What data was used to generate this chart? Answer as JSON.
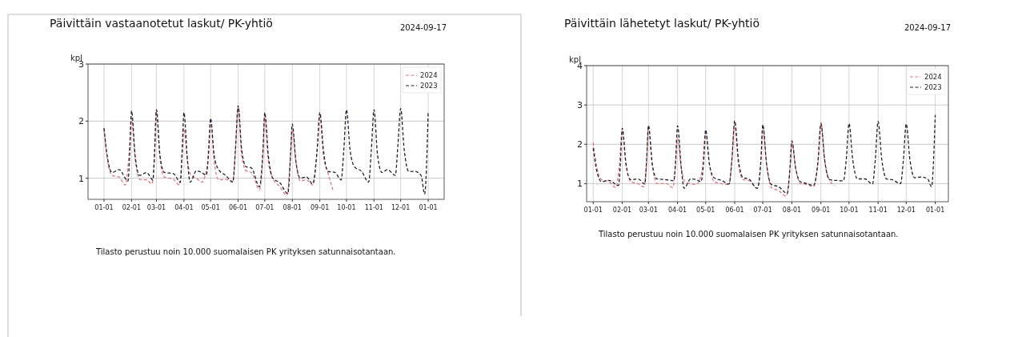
{
  "chart_data": [
    {
      "type": "line",
      "title": "Päivittäin vastaanotetut laskut/ PK-yhtiö",
      "ylabel": "kpl",
      "annotations": [
        "2024-09-17",
        "Tilasto perustuu noin 10.000 suomalaisen PK yrityksen satunnaisotantaan."
      ],
      "xlim": [
        "2022-12-14",
        "2024-01-19"
      ],
      "ylim": [
        0.63,
        3
      ],
      "yticks": [
        1,
        2,
        3
      ],
      "xticks": [
        {
          "value": "2023-01-01",
          "label": "01-01"
        },
        {
          "value": "2023-02-01",
          "label": "02-01"
        },
        {
          "value": "2023-03-01",
          "label": "03-01"
        },
        {
          "value": "2023-04-01",
          "label": "04-01"
        },
        {
          "value": "2023-05-01",
          "label": "05-01"
        },
        {
          "value": "2023-06-01",
          "label": "06-01"
        },
        {
          "value": "2023-07-01",
          "label": "07-01"
        },
        {
          "value": "2023-08-01",
          "label": "08-01"
        },
        {
          "value": "2023-09-01",
          "label": "09-01"
        },
        {
          "value": "2023-10-01",
          "label": "10-01"
        },
        {
          "value": "2023-11-01",
          "label": "11-01"
        },
        {
          "value": "2023-12-01",
          "label": "12-01"
        },
        {
          "value": "2024-01-01",
          "label": "01-01"
        }
      ],
      "grid": true,
      "legend": "top right",
      "marker": "none",
      "line_style": "dashed",
      "series": [
        {
          "name": "2024",
          "color": "#e07a80",
          "x": [
            "2023-01-01",
            "2023-01-05",
            "2023-01-10",
            "2023-01-18",
            "2023-01-25",
            "2023-01-29",
            "2023-02-01",
            "2023-02-05",
            "2023-02-10",
            "2023-02-18",
            "2023-02-24",
            "2023-02-27",
            "2023-03-01",
            "2023-03-05",
            "2023-03-10",
            "2023-03-20",
            "2023-03-27",
            "2023-03-30",
            "2023-04-01",
            "2023-04-05",
            "2023-04-09",
            "2023-04-15",
            "2023-04-21",
            "2023-04-27",
            "2023-05-01",
            "2023-05-05",
            "2023-05-10",
            "2023-05-18",
            "2023-05-26",
            "2023-05-29",
            "2023-06-01",
            "2023-06-05",
            "2023-06-10",
            "2023-06-16",
            "2023-06-25",
            "2023-06-29",
            "2023-07-01",
            "2023-07-05",
            "2023-07-10",
            "2023-07-18",
            "2023-07-26",
            "2023-07-30",
            "2023-08-01",
            "2023-08-05",
            "2023-08-10",
            "2023-08-17",
            "2023-08-24",
            "2023-08-29",
            "2023-09-01",
            "2023-09-05",
            "2023-09-10",
            "2023-09-16"
          ],
          "values": [
            1.85,
            1.3,
            1.05,
            1.02,
            0.88,
            1.4,
            2.05,
            1.35,
            0.98,
            0.97,
            0.9,
            1.4,
            2.2,
            1.35,
            1.02,
            0.98,
            0.88,
            1.4,
            1.87,
            1.3,
            1.05,
            1.0,
            0.93,
            1.2,
            2.0,
            1.3,
            0.97,
            0.98,
            0.95,
            1.5,
            2.25,
            1.4,
            1.13,
            1.1,
            0.8,
            1.4,
            2.1,
            1.3,
            1.0,
            0.85,
            0.7,
            1.4,
            1.85,
            1.3,
            0.95,
            0.97,
            0.88,
            1.5,
            2.1,
            1.4,
            1.1,
            0.78
          ]
        },
        {
          "name": "2023",
          "color": "#22222e",
          "x": [
            "2023-01-01",
            "2023-01-05",
            "2023-01-10",
            "2023-01-18",
            "2023-01-28",
            "2023-01-30",
            "2023-02-01",
            "2023-02-05",
            "2023-02-10",
            "2023-02-18",
            "2023-02-25",
            "2023-02-27",
            "2023-03-01",
            "2023-03-05",
            "2023-03-10",
            "2023-03-20",
            "2023-03-28",
            "2023-03-30",
            "2023-04-01",
            "2023-04-05",
            "2023-04-08",
            "2023-04-15",
            "2023-04-21",
            "2023-04-26",
            "2023-04-29",
            "2023-05-01",
            "2023-05-05",
            "2023-05-10",
            "2023-05-18",
            "2023-05-26",
            "2023-05-29",
            "2023-06-01",
            "2023-06-05",
            "2023-06-10",
            "2023-06-16",
            "2023-06-25",
            "2023-06-29",
            "2023-07-01",
            "2023-07-05",
            "2023-07-10",
            "2023-07-18",
            "2023-07-27",
            "2023-07-30",
            "2023-08-01",
            "2023-08-05",
            "2023-08-10",
            "2023-08-17",
            "2023-08-24",
            "2023-08-29",
            "2023-09-01",
            "2023-09-05",
            "2023-09-10",
            "2023-09-18",
            "2023-09-25",
            "2023-09-28",
            "2023-10-01",
            "2023-10-05",
            "2023-10-10",
            "2023-10-18",
            "2023-10-26",
            "2023-10-29",
            "2023-11-01",
            "2023-11-05",
            "2023-11-10",
            "2023-11-16",
            "2023-11-25",
            "2023-11-28",
            "2023-12-01",
            "2023-12-05",
            "2023-12-10",
            "2023-12-17",
            "2023-12-24",
            "2023-12-28",
            "2024-01-01"
          ],
          "values": [
            1.88,
            1.35,
            1.1,
            1.15,
            0.95,
            1.45,
            2.18,
            1.4,
            1.05,
            1.1,
            0.97,
            1.5,
            2.2,
            1.4,
            1.1,
            1.08,
            0.93,
            1.5,
            2.15,
            1.3,
            0.93,
            1.13,
            1.1,
            1.05,
            1.5,
            2.05,
            1.4,
            1.15,
            1.05,
            0.93,
            1.5,
            2.27,
            1.5,
            1.2,
            1.18,
            0.85,
            1.5,
            2.15,
            1.4,
            1.0,
            0.92,
            0.73,
            1.4,
            1.95,
            1.3,
            1.0,
            1.02,
            0.9,
            1.5,
            2.15,
            1.5,
            1.12,
            1.1,
            0.97,
            1.5,
            2.2,
            1.5,
            1.2,
            1.12,
            0.93,
            1.5,
            2.2,
            1.4,
            1.1,
            1.15,
            1.05,
            1.6,
            2.22,
            1.5,
            1.12,
            1.12,
            1.05,
            0.72,
            2.15
          ]
        }
      ]
    },
    {
      "type": "line",
      "title": "Päivittäin lähetetyt laskut/ PK-yhtiö",
      "ylabel": "kpl",
      "annotations": [
        "2024-09-17",
        "Tilasto perustuu noin 10.000 suomalaisen PK yrityksen satunnaisotantaan."
      ],
      "xlim": [
        "2022-12-25",
        "2024-01-15"
      ],
      "ylim": [
        0.54,
        4
      ],
      "yticks": [
        1,
        2,
        3,
        4
      ],
      "xticks": [
        {
          "value": "2023-01-01",
          "label": "01-01"
        },
        {
          "value": "2023-02-01",
          "label": "02-01"
        },
        {
          "value": "2023-03-01",
          "label": "03-01"
        },
        {
          "value": "2023-04-01",
          "label": "04-01"
        },
        {
          "value": "2023-05-01",
          "label": "05-01"
        },
        {
          "value": "2023-06-01",
          "label": "06-01"
        },
        {
          "value": "2023-07-01",
          "label": "07-01"
        },
        {
          "value": "2023-08-01",
          "label": "08-01"
        },
        {
          "value": "2023-09-01",
          "label": "09-01"
        },
        {
          "value": "2023-10-01",
          "label": "10-01"
        },
        {
          "value": "2023-11-01",
          "label": "11-01"
        },
        {
          "value": "2023-12-01",
          "label": "12-01"
        },
        {
          "value": "2024-01-01",
          "label": "01-01"
        }
      ],
      "grid": true,
      "legend": "top right",
      "marker": "none",
      "line_style": "dashed",
      "series": [
        {
          "name": "2024",
          "color": "#e07a80",
          "x": [
            "2023-01-01",
            "2023-01-05",
            "2023-01-10",
            "2023-01-18",
            "2023-01-25",
            "2023-01-29",
            "2023-02-01",
            "2023-02-05",
            "2023-02-10",
            "2023-02-18",
            "2023-02-24",
            "2023-02-27",
            "2023-03-01",
            "2023-03-05",
            "2023-03-10",
            "2023-03-20",
            "2023-03-27",
            "2023-03-30",
            "2023-04-01",
            "2023-04-05",
            "2023-04-09",
            "2023-04-15",
            "2023-04-21",
            "2023-04-27",
            "2023-05-01",
            "2023-05-05",
            "2023-05-10",
            "2023-05-18",
            "2023-05-26",
            "2023-05-29",
            "2023-06-01",
            "2023-06-05",
            "2023-06-10",
            "2023-06-16",
            "2023-06-25",
            "2023-06-29",
            "2023-07-01",
            "2023-07-05",
            "2023-07-10",
            "2023-07-18",
            "2023-07-26",
            "2023-07-30",
            "2023-08-01",
            "2023-08-05",
            "2023-08-10",
            "2023-08-17",
            "2023-08-24",
            "2023-08-29",
            "2023-09-01",
            "2023-09-05",
            "2023-09-10",
            "2023-09-16"
          ],
          "values": [
            2.05,
            1.4,
            1.1,
            1.05,
            0.9,
            1.5,
            2.35,
            1.5,
            1.05,
            1.0,
            0.92,
            1.5,
            2.45,
            1.5,
            1.0,
            1.0,
            0.9,
            1.5,
            2.15,
            1.4,
            1.05,
            1.0,
            0.98,
            1.3,
            2.3,
            1.5,
            1.05,
            1.0,
            0.98,
            1.6,
            2.5,
            1.5,
            1.1,
            1.08,
            0.88,
            1.6,
            2.45,
            1.5,
            0.9,
            0.82,
            0.68,
            1.4,
            2.05,
            1.4,
            1.0,
            0.98,
            0.92,
            1.6,
            2.55,
            1.6,
            1.1,
            0.95
          ]
        },
        {
          "name": "2023",
          "color": "#22222e",
          "x": [
            "2023-01-01",
            "2023-01-05",
            "2023-01-10",
            "2023-01-18",
            "2023-01-28",
            "2023-01-30",
            "2023-02-01",
            "2023-02-05",
            "2023-02-10",
            "2023-02-18",
            "2023-02-25",
            "2023-02-27",
            "2023-03-01",
            "2023-03-05",
            "2023-03-10",
            "2023-03-20",
            "2023-03-28",
            "2023-03-30",
            "2023-04-01",
            "2023-04-05",
            "2023-04-08",
            "2023-04-15",
            "2023-04-21",
            "2023-04-26",
            "2023-04-29",
            "2023-05-01",
            "2023-05-05",
            "2023-05-10",
            "2023-05-18",
            "2023-05-26",
            "2023-05-29",
            "2023-06-01",
            "2023-06-05",
            "2023-06-10",
            "2023-06-16",
            "2023-06-25",
            "2023-06-29",
            "2023-07-01",
            "2023-07-05",
            "2023-07-10",
            "2023-07-18",
            "2023-07-27",
            "2023-07-30",
            "2023-08-01",
            "2023-08-05",
            "2023-08-10",
            "2023-08-17",
            "2023-08-24",
            "2023-08-29",
            "2023-09-01",
            "2023-09-05",
            "2023-09-10",
            "2023-09-18",
            "2023-09-25",
            "2023-09-28",
            "2023-10-01",
            "2023-10-05",
            "2023-10-10",
            "2023-10-18",
            "2023-10-26",
            "2023-10-29",
            "2023-11-01",
            "2023-11-05",
            "2023-11-10",
            "2023-11-16",
            "2023-11-25",
            "2023-11-28",
            "2023-12-01",
            "2023-12-05",
            "2023-12-10",
            "2023-12-17",
            "2023-12-24",
            "2023-12-28",
            "2024-01-01"
          ],
          "values": [
            1.9,
            1.3,
            1.05,
            1.08,
            0.95,
            1.5,
            2.41,
            1.5,
            1.1,
            1.12,
            0.99,
            1.6,
            2.48,
            1.5,
            1.12,
            1.1,
            1.07,
            1.6,
            2.47,
            1.4,
            0.88,
            1.12,
            1.1,
            1.05,
            1.6,
            2.37,
            1.5,
            1.15,
            1.08,
            0.99,
            1.6,
            2.6,
            1.6,
            1.15,
            1.12,
            0.88,
            1.6,
            2.5,
            1.5,
            0.98,
            0.92,
            0.75,
            1.4,
            2.09,
            1.4,
            1.05,
            1.0,
            0.95,
            1.6,
            2.53,
            1.6,
            1.1,
            1.08,
            1.07,
            1.6,
            2.53,
            1.6,
            1.12,
            1.12,
            0.99,
            1.6,
            2.58,
            1.6,
            1.12,
            1.1,
            1.0,
            1.6,
            2.52,
            1.6,
            1.15,
            1.17,
            1.12,
            0.92,
            2.75
          ]
        }
      ]
    }
  ]
}
